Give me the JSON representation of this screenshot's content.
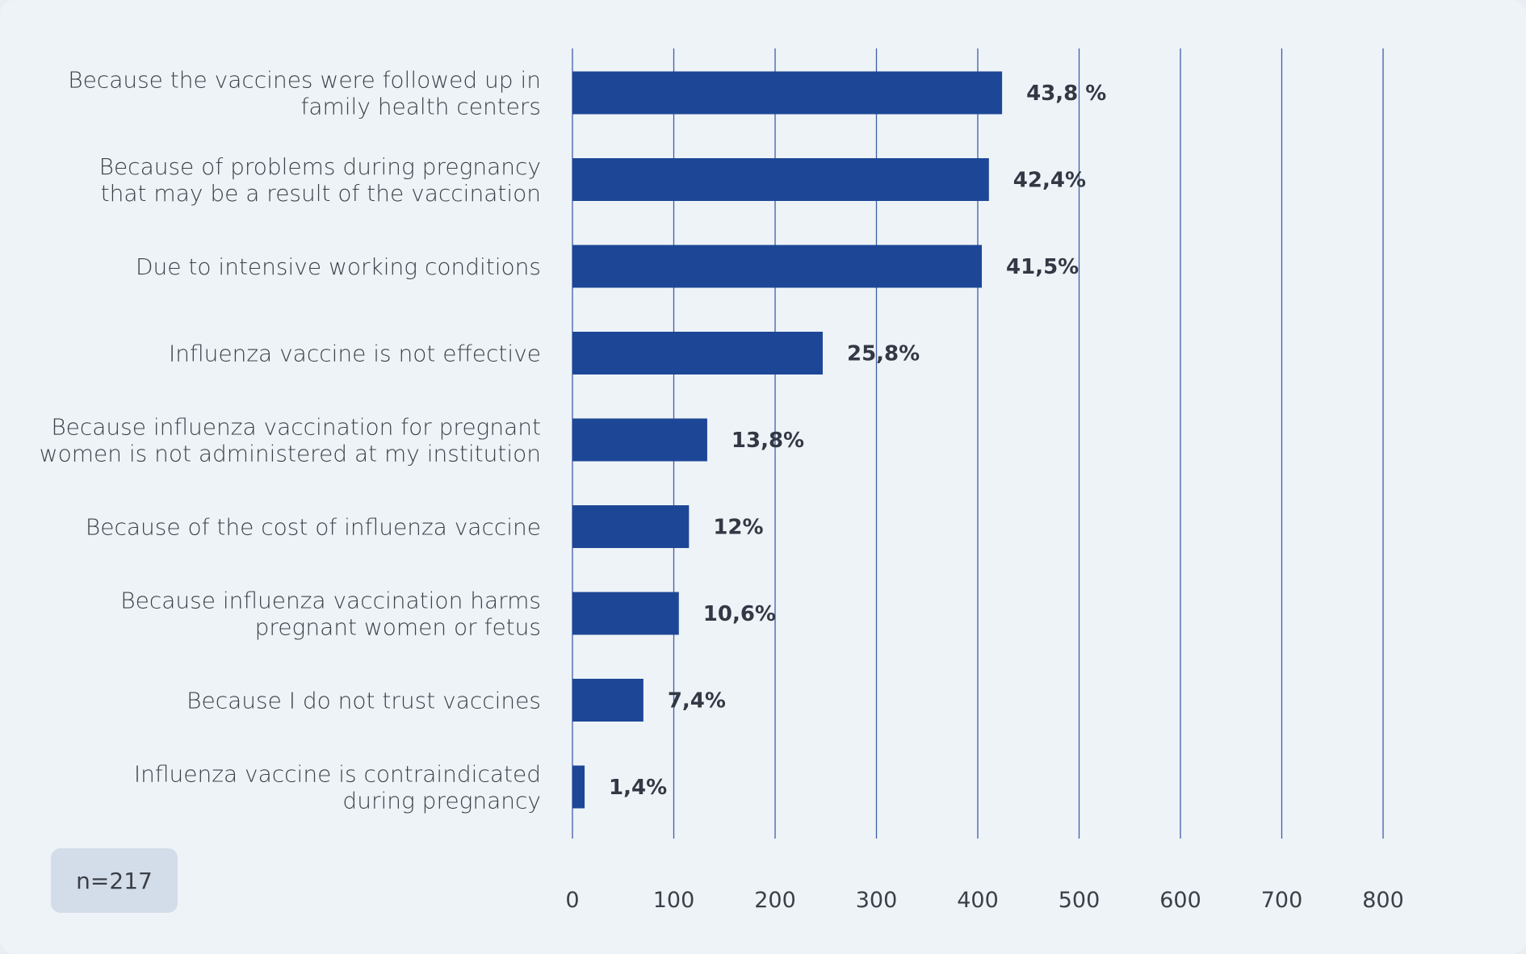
{
  "sample_note": "n=217",
  "colors": {
    "bar": "#1d4796",
    "grid": "#3d5fa8",
    "background": "#eef3f8"
  },
  "chart_data": {
    "type": "bar",
    "orientation": "horizontal",
    "title": "",
    "xlabel": "",
    "ylabel": "",
    "xlim": [
      0,
      800
    ],
    "xticks": [
      "0",
      "100",
      "200",
      "300",
      "400",
      "500",
      "600",
      "700",
      "800"
    ],
    "grid": true,
    "categories": [
      [
        "Because the vaccines were followed up in",
        "family health centers"
      ],
      [
        "Because of problems during pregnancy",
        "that may be a result of the vaccination"
      ],
      [
        "Due to intensive working conditions"
      ],
      [
        "Influenza vaccine is not effective"
      ],
      [
        "Because influenza vaccination for pregnant",
        "women is not administered at my institution"
      ],
      [
        "Because of the cost of influenza vaccine"
      ],
      [
        "Because influenza vaccination harms",
        "pregnant women or fetus"
      ],
      [
        "Because I do not trust vaccines"
      ],
      [
        "Influenza vaccine is contraindicated",
        "during pregnancy"
      ]
    ],
    "values": [
      424,
      411,
      404,
      247,
      133,
      115,
      105,
      70,
      12
    ],
    "data_labels": [
      "43,8 %",
      "42,4%",
      "41,5%",
      "25,8%",
      "13,8%",
      "12%",
      "10,6%",
      "7,4%",
      "1,4%"
    ]
  }
}
